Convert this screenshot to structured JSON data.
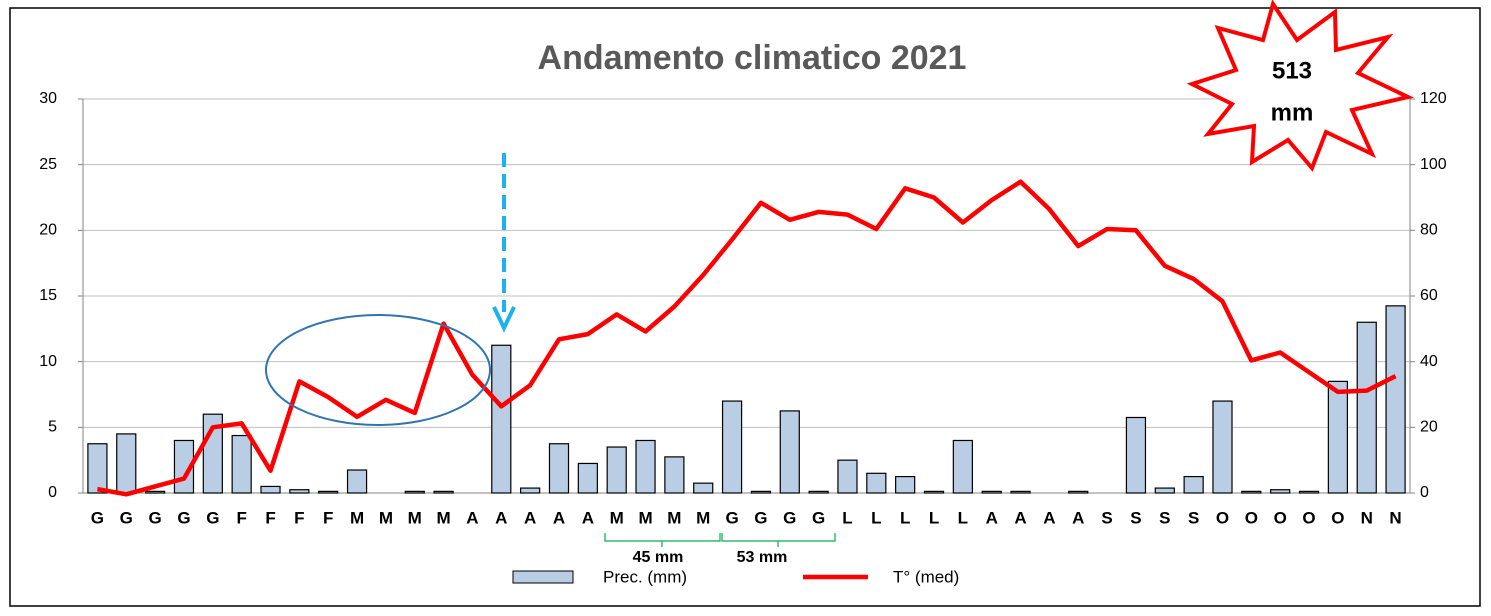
{
  "chart_data": {
    "type": "bar_line",
    "title": "Andamento climatico 2021",
    "categories": [
      "G",
      "G",
      "G",
      "G",
      "G",
      "F",
      "F",
      "F",
      "F",
      "M",
      "M",
      "M",
      "M",
      "A",
      "A",
      "A",
      "A",
      "A",
      "M",
      "M",
      "M",
      "M",
      "G",
      "G",
      "G",
      "G",
      "L",
      "L",
      "L",
      "L",
      "L",
      "A",
      "A",
      "A",
      "A",
      "S",
      "S",
      "S",
      "S",
      "O",
      "O",
      "O",
      "O",
      "O",
      "N",
      "N"
    ],
    "series": [
      {
        "name": "Prec. (mm)",
        "type": "bar",
        "axis": "y2",
        "color": "#b9cde5",
        "values": [
          15,
          18,
          0.5,
          16,
          24,
          17.5,
          2,
          1,
          0.5,
          7,
          0,
          0.5,
          0.5,
          0,
          45,
          1.5,
          15,
          9,
          14,
          16,
          11,
          3,
          28,
          0.5,
          25,
          0.5,
          10,
          6,
          5,
          0.5,
          16,
          0.5,
          0.5,
          0,
          0.5,
          0,
          23,
          1.5,
          5,
          28,
          0.5,
          1,
          0.5,
          34,
          52,
          57
        ]
      },
      {
        "name": "T° (med)",
        "type": "line",
        "color": "#ff0000",
        "values": [
          0.3,
          -0.1,
          0.5,
          1.1,
          5.0,
          5.3,
          1.7,
          8.5,
          7.3,
          5.8,
          7.1,
          6.1,
          12.9,
          9.0,
          6.6,
          8.2,
          11.7,
          12.1,
          13.6,
          12.3,
          14.2,
          16.6,
          19.3,
          22.1,
          20.8,
          21.4,
          21.2,
          20.1,
          23.2,
          22.5,
          20.6,
          22.3,
          23.7,
          21.6,
          18.8,
          20.1,
          20.0,
          17.3,
          16.3,
          14.6,
          10.1,
          10.7,
          9.2,
          7.7,
          7.8,
          8.9
        ]
      }
    ],
    "ylim": [
      0,
      30
    ],
    "yticks": [
      0,
      5,
      10,
      15,
      20,
      25,
      30
    ],
    "y2lim": [
      0,
      120
    ],
    "y2ticks": [
      0,
      20,
      40,
      60,
      80,
      100,
      120
    ],
    "grid": true,
    "annotations": {
      "total": [
        "513",
        "mm"
      ],
      "may": "45 mm",
      "june": "53 mm"
    }
  }
}
